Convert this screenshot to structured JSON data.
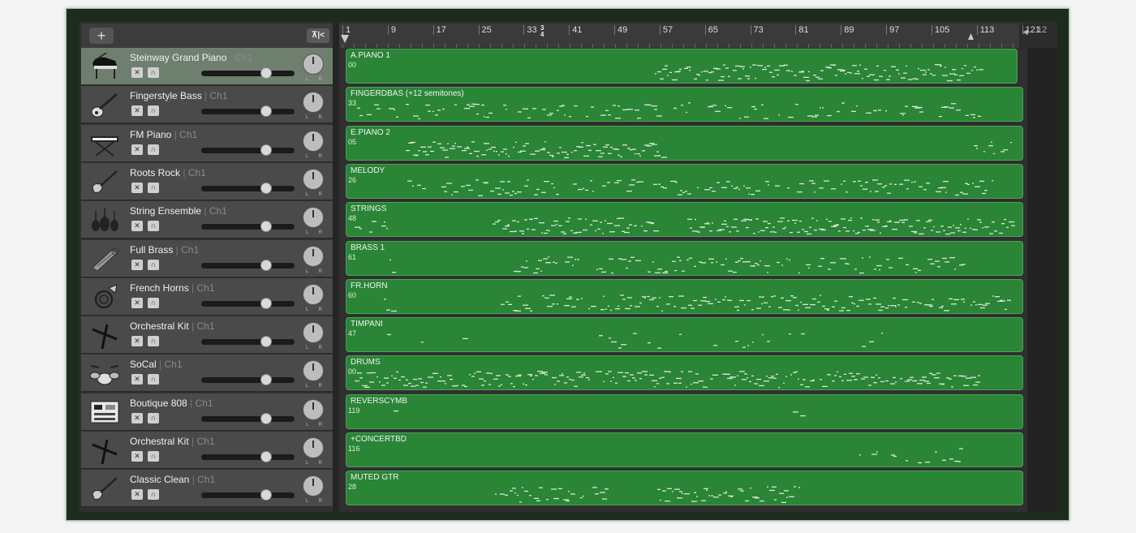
{
  "header": {
    "add_label": "+",
    "filter_label": "⊼|<"
  },
  "ruler": {
    "bars": [
      "1",
      "9",
      "17",
      "25",
      "33",
      "41",
      "49",
      "57",
      "65",
      "73",
      "81",
      "89",
      "97",
      "105",
      "113",
      "121"
    ],
    "time_signature": {
      "top": "3",
      "bottom": "4"
    },
    "end_label": "12"
  },
  "tracks": [
    {
      "name": "Steinway Grand Piano",
      "channel": "Ch1",
      "icon": "grand-piano-icon",
      "volume": 0.72,
      "selected": true
    },
    {
      "name": "Fingerstyle Bass",
      "channel": "Ch1",
      "icon": "bass-guitar-icon",
      "volume": 0.72
    },
    {
      "name": "FM Piano",
      "channel": "Ch1",
      "icon": "keyboard-stand-icon",
      "volume": 0.72
    },
    {
      "name": "Roots Rock",
      "channel": "Ch1",
      "icon": "electric-guitar-icon",
      "volume": 0.72
    },
    {
      "name": "String Ensemble",
      "channel": "Ch1",
      "icon": "string-ensemble-icon",
      "volume": 0.72
    },
    {
      "name": "Full Brass",
      "channel": "Ch1",
      "icon": "brass-icon",
      "volume": 0.72
    },
    {
      "name": "French Horns",
      "channel": "Ch1",
      "icon": "french-horn-icon",
      "volume": 0.72
    },
    {
      "name": "Orchestral Kit",
      "channel": "Ch1",
      "icon": "drumsticks-icon",
      "volume": 0.72
    },
    {
      "name": "SoCal",
      "channel": "Ch1",
      "icon": "drum-kit-icon",
      "volume": 0.72
    },
    {
      "name": "Boutique 808",
      "channel": "Ch1",
      "icon": "drum-machine-icon",
      "volume": 0.72
    },
    {
      "name": "Orchestral Kit",
      "channel": "Ch1",
      "icon": "drumsticks-icon",
      "volume": 0.72
    },
    {
      "name": "Classic Clean",
      "channel": "Ch1",
      "icon": "electric-guitar-icon",
      "volume": 0.72
    }
  ],
  "regions": [
    {
      "name": "A.PIANO 1",
      "number": "00"
    },
    {
      "name": "FINGERDBAS (+12 semitones)",
      "number": "33"
    },
    {
      "name": "E.PIANO 2",
      "number": "05"
    },
    {
      "name": "MELODY",
      "number": "26"
    },
    {
      "name": "STRINGS",
      "number": "48"
    },
    {
      "name": "BRASS 1",
      "number": "61"
    },
    {
      "name": "FR.HORN",
      "number": "60"
    },
    {
      "name": "TIMPANI",
      "number": "47"
    },
    {
      "name": "DRUMS",
      "number": "00"
    },
    {
      "name": "REVERSCYMB",
      "number": "119"
    },
    {
      "name": "+CONCERTBD",
      "number": "116"
    },
    {
      "name": "MUTED GTR",
      "number": "28"
    }
  ],
  "colors": {
    "region": "#2a8536",
    "region_border": "#4aa456",
    "note": "#d8e6d8",
    "selected_track": "#6f7f6f"
  }
}
